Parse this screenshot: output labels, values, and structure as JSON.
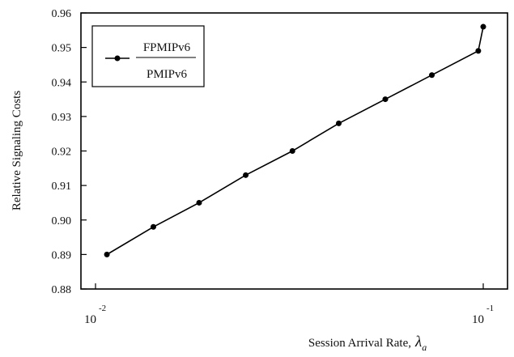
{
  "chart_data": {
    "type": "line",
    "title": "",
    "xlabel": "Session Arrival Rate,",
    "xlabel_symbol": "λ",
    "xlabel_symbol_sub": "a",
    "ylabel": "Relative Signaling Costs",
    "x_scale": "log",
    "xlim": [
      0.01,
      0.1
    ],
    "ylim": [
      0.88,
      0.96
    ],
    "grid": false,
    "legend_position": "top-left",
    "x_ticks": [
      {
        "value": 0.01,
        "base": "10",
        "exp": "-2"
      },
      {
        "value": 0.1,
        "base": "10",
        "exp": "-1"
      }
    ],
    "y_ticks": [
      "0.88",
      "0.89",
      "0.90",
      "0.91",
      "0.92",
      "0.93",
      "0.94",
      "0.95",
      "0.96"
    ],
    "series": [
      {
        "name_numerator": "FPMIPv6",
        "name_denominator": "PMIPv6",
        "color": "#000000",
        "marker": "circle",
        "x": [
          0.0107,
          0.0141,
          0.0185,
          0.0244,
          0.0322,
          0.0424,
          0.0559,
          0.0737,
          0.0971,
          0.1
        ],
        "y": [
          0.89,
          0.898,
          0.905,
          0.913,
          0.92,
          0.928,
          0.935,
          0.942,
          0.949,
          0.956
        ]
      }
    ]
  }
}
